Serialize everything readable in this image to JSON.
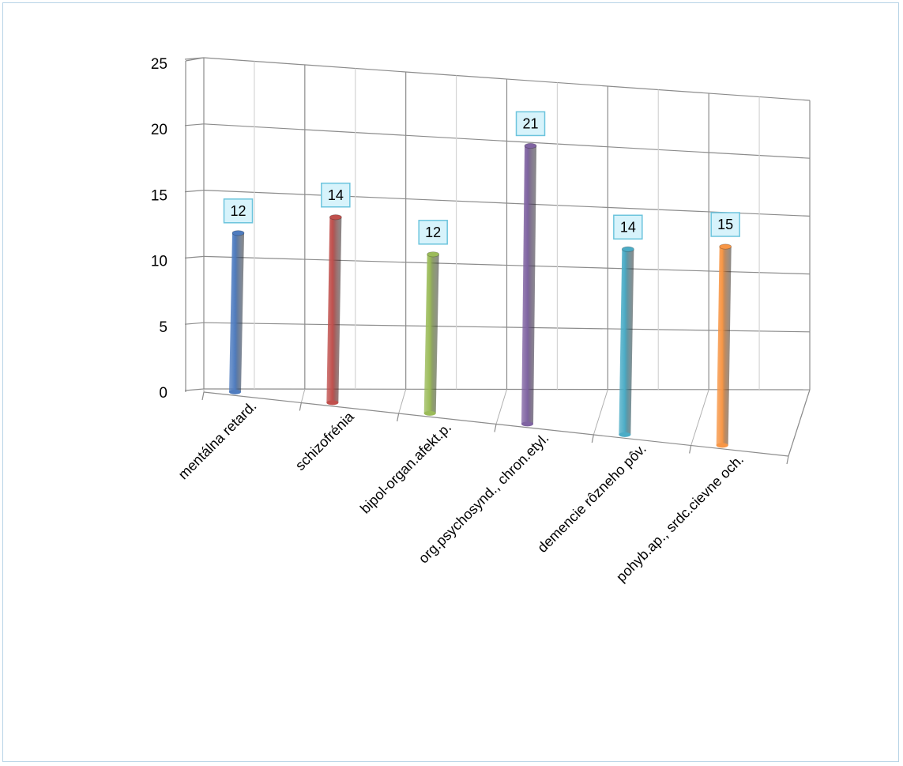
{
  "chart_data": {
    "type": "bar",
    "categories": [
      "mentálna retard.",
      "schizofrénia",
      "bipol-organ.afekt.p.",
      "org.psychosynd., chron.etyl.",
      "demencie rôzneho pôv.",
      "pohyb.ap., srdc.cievne och."
    ],
    "values": [
      12,
      14,
      12,
      21,
      14,
      15
    ],
    "ylim": [
      0,
      25
    ],
    "yticks": [
      0,
      5,
      10,
      15,
      20,
      25
    ],
    "data_labels": true,
    "grid": true,
    "colors": [
      "#4f7cbf",
      "#c0504d",
      "#9bbb59",
      "#8064a2",
      "#4bacc6",
      "#f79646"
    ]
  }
}
